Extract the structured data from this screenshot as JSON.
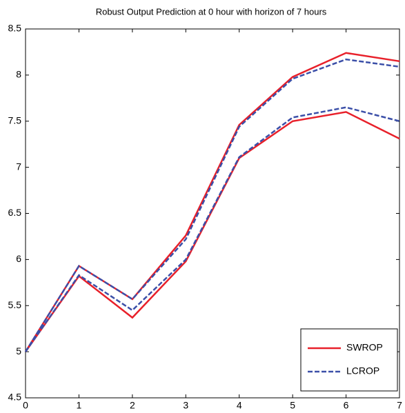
{
  "chart_data": {
    "type": "line",
    "title": "Robust Output Prediction at 0 hour with horizon of 7 hours",
    "x": [
      0,
      1,
      2,
      3,
      4,
      5,
      6,
      7
    ],
    "series": [
      {
        "name": "SWROP",
        "color": "#e8202a",
        "dash": false,
        "upper": [
          5.0,
          5.93,
          5.57,
          6.26,
          7.46,
          7.98,
          8.24,
          8.15
        ],
        "lower": [
          5.0,
          5.82,
          5.37,
          5.98,
          7.1,
          7.5,
          7.6,
          7.31
        ]
      },
      {
        "name": "LCROP",
        "color": "#3b4fa8",
        "dash": true,
        "upper": [
          5.0,
          5.93,
          5.57,
          6.22,
          7.44,
          7.96,
          8.17,
          8.09
        ],
        "lower": [
          5.0,
          5.83,
          5.45,
          6.0,
          7.11,
          7.54,
          7.65,
          7.5
        ]
      }
    ],
    "xlim": [
      0,
      7
    ],
    "xticks": [
      0,
      1,
      2,
      3,
      4,
      5,
      6,
      7
    ],
    "ylim": [
      4.5,
      8.5
    ],
    "yticks": [
      4.5,
      5,
      5.5,
      6,
      6.5,
      7,
      7.5,
      8,
      8.5
    ],
    "grid": false,
    "legend": "lower right"
  }
}
